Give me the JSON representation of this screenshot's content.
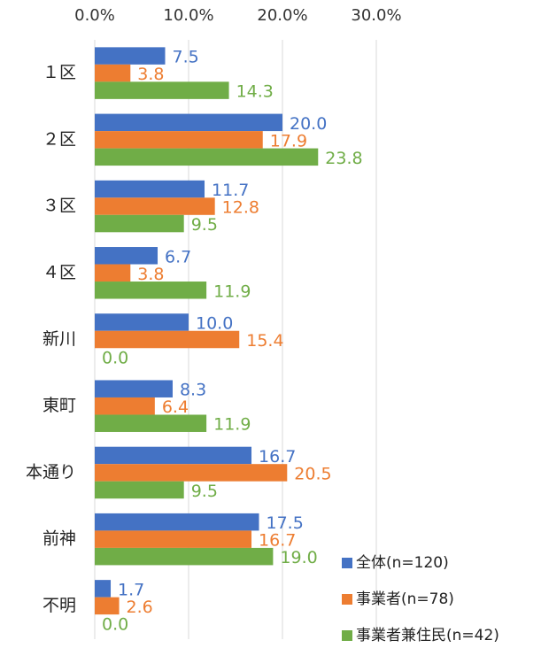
{
  "chart_data": {
    "type": "bar",
    "orientation": "horizontal",
    "categories": [
      "１区",
      "２区",
      "３区",
      "４区",
      "新川",
      "東町",
      "本通り",
      "前神",
      "不明"
    ],
    "series": [
      {
        "name": "全体(n=120)",
        "color": "#4472c4",
        "values": [
          7.5,
          20.0,
          11.7,
          6.7,
          10.0,
          8.3,
          16.7,
          17.5,
          1.7
        ],
        "value_labels": [
          "7.5",
          "20.0",
          "11.7",
          "6.7",
          "10.0",
          "8.3",
          "16.7",
          "17.5",
          "1.7"
        ]
      },
      {
        "name": "事業者(n=78)",
        "color": "#ed7d31",
        "values": [
          3.8,
          17.9,
          12.8,
          3.8,
          15.4,
          6.4,
          20.5,
          16.7,
          2.6
        ],
        "value_labels": [
          "3.8",
          "17.9",
          "12.8",
          "3.8",
          "15.4",
          "6.4",
          "20.5",
          "16.7",
          "2.6"
        ]
      },
      {
        "name": "事業者兼住民(n=42)",
        "color": "#70ad47",
        "values": [
          14.3,
          23.8,
          9.5,
          11.9,
          0.0,
          11.9,
          9.5,
          19.0,
          0.0
        ],
        "value_labels": [
          "14.3",
          "23.8",
          "9.5",
          "11.9",
          "0.0",
          "11.9",
          "9.5",
          "19.0",
          "0.0"
        ]
      }
    ],
    "xlim": [
      0,
      30
    ],
    "xticks": [
      {
        "value": 0,
        "label": "0.0%"
      },
      {
        "value": 10,
        "label": "10.0%"
      },
      {
        "value": 20,
        "label": "20.0%"
      },
      {
        "value": 30,
        "label": "30.0%"
      }
    ],
    "grid": true,
    "legend": "lower right"
  }
}
